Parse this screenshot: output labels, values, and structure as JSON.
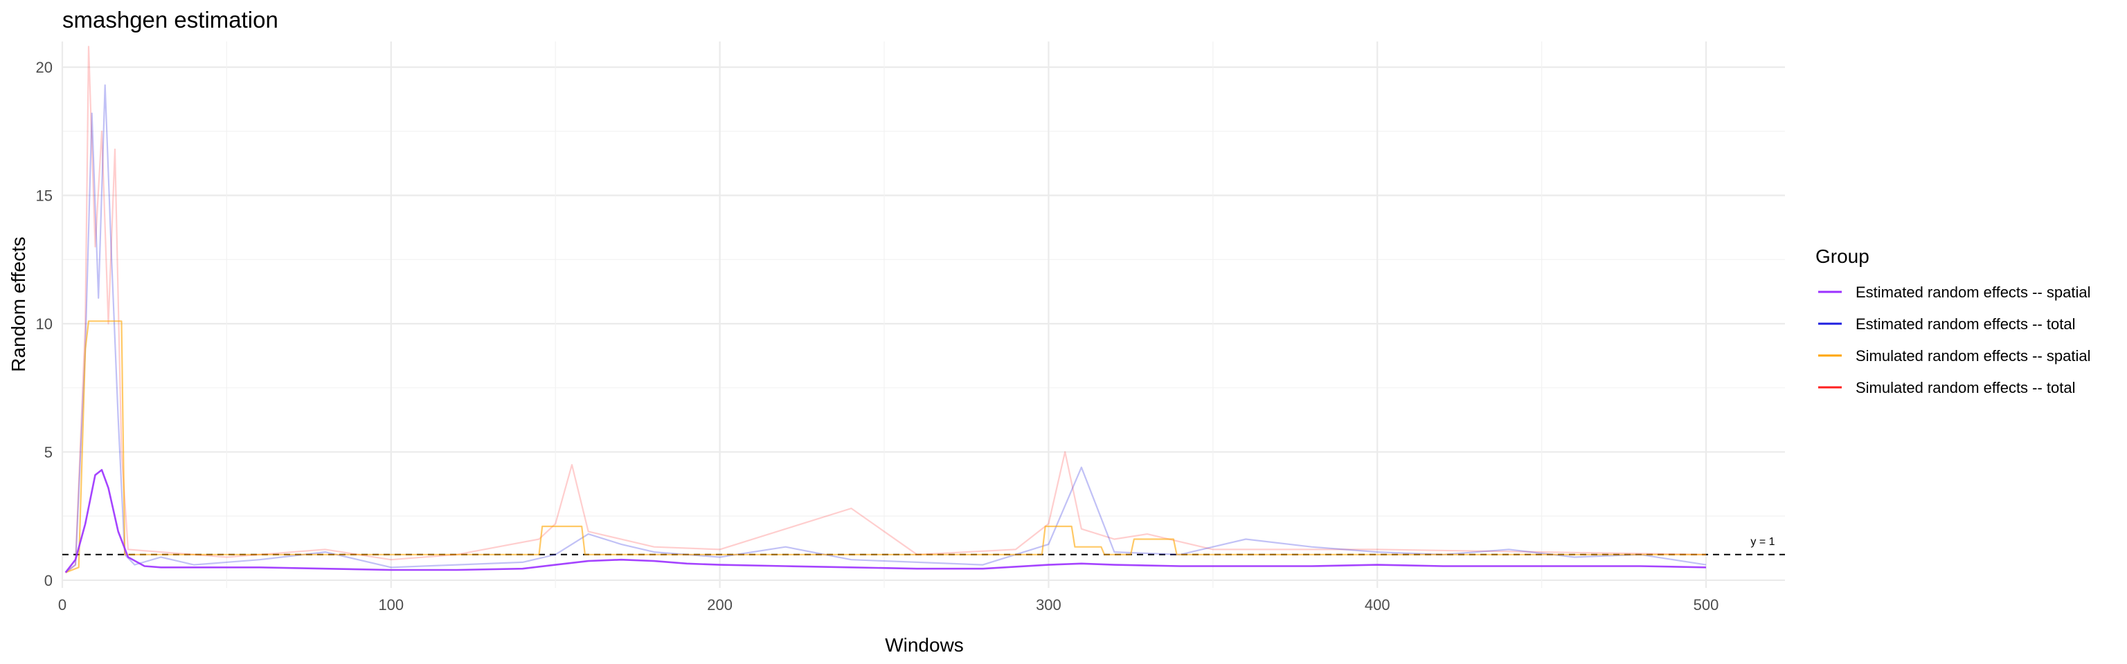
{
  "chart_data": {
    "type": "line",
    "title": "smashgen estimation",
    "xlabel": "Windows",
    "ylabel": "Random effects",
    "xlim": [
      0,
      524
    ],
    "ylim": [
      -0.3,
      21.0
    ],
    "x_ticks": [
      0,
      100,
      200,
      300,
      400,
      500
    ],
    "x_tick_labels": [
      "0",
      "100",
      "200",
      "300",
      "400",
      "500"
    ],
    "y_ticks": [
      0,
      5,
      10,
      15,
      20
    ],
    "y_tick_labels": [
      "0",
      "5",
      "10",
      "15",
      "20"
    ],
    "grid": true,
    "legend_title": "Group",
    "legend_position": "right",
    "reference_line": {
      "y": 1,
      "style": "dashed",
      "label": "y = 1"
    },
    "series": [
      {
        "name": "Estimated random effects -- spatial",
        "color": "#9B30FF",
        "x": [
          1,
          4,
          7,
          10,
          12,
          14,
          17,
          20,
          25,
          30,
          40,
          60,
          80,
          100,
          120,
          140,
          150,
          160,
          170,
          180,
          190,
          200,
          220,
          240,
          260,
          280,
          300,
          310,
          320,
          340,
          360,
          380,
          400,
          420,
          440,
          460,
          480,
          500
        ],
        "values": [
          0.3,
          0.8,
          2.2,
          4.1,
          4.3,
          3.6,
          1.9,
          0.9,
          0.55,
          0.5,
          0.5,
          0.5,
          0.45,
          0.4,
          0.4,
          0.45,
          0.6,
          0.75,
          0.8,
          0.75,
          0.65,
          0.6,
          0.55,
          0.5,
          0.45,
          0.45,
          0.6,
          0.65,
          0.6,
          0.55,
          0.55,
          0.55,
          0.6,
          0.55,
          0.55,
          0.55,
          0.55,
          0.5
        ]
      },
      {
        "name": "Estimated random effects -- total",
        "color": "#2020E0",
        "x": [
          1,
          4,
          7,
          9,
          11,
          13,
          15,
          17,
          19,
          22,
          30,
          40,
          60,
          80,
          100,
          120,
          140,
          150,
          160,
          170,
          180,
          200,
          220,
          240,
          260,
          280,
          300,
          310,
          320,
          340,
          360,
          380,
          400,
          420,
          440,
          460,
          480,
          500
        ],
        "values": [
          0.3,
          0.6,
          9.0,
          18.2,
          11.0,
          19.3,
          12.5,
          6.3,
          1.0,
          0.6,
          0.9,
          0.6,
          0.8,
          1.1,
          0.5,
          0.6,
          0.7,
          1.0,
          1.8,
          1.4,
          1.1,
          0.9,
          1.3,
          0.8,
          0.7,
          0.6,
          1.4,
          4.4,
          1.1,
          1.0,
          1.6,
          1.3,
          1.1,
          1.0,
          1.2,
          0.9,
          1.0,
          0.6
        ]
      },
      {
        "name": "Simulated random effects -- spatial",
        "color": "#FFA500",
        "x": [
          1,
          5,
          7,
          8,
          18,
          19,
          30,
          50,
          100,
          145,
          146,
          158,
          159,
          200,
          250,
          298,
          299,
          307,
          308,
          316,
          317,
          325,
          326,
          338,
          339,
          400,
          450,
          500
        ],
        "values": [
          0.3,
          0.5,
          9.0,
          10.1,
          10.1,
          1.0,
          1.0,
          1.0,
          1.0,
          1.0,
          2.1,
          2.1,
          1.0,
          1.0,
          1.0,
          1.0,
          2.1,
          2.1,
          1.3,
          1.3,
          1.0,
          1.0,
          1.6,
          1.6,
          1.0,
          1.0,
          1.0,
          1.0
        ]
      },
      {
        "name": "Simulated random effects -- total",
        "color": "#FF2020",
        "x": [
          1,
          4,
          7,
          8,
          10,
          12,
          14,
          16,
          18,
          20,
          30,
          50,
          80,
          100,
          120,
          145,
          150,
          155,
          160,
          180,
          200,
          240,
          260,
          290,
          300,
          305,
          310,
          320,
          330,
          350,
          400,
          450,
          500
        ],
        "values": [
          0.3,
          0.6,
          10.0,
          20.8,
          13.0,
          17.5,
          10.0,
          16.8,
          5.0,
          1.2,
          1.1,
          0.9,
          1.2,
          0.8,
          1.0,
          1.6,
          2.2,
          4.5,
          1.9,
          1.3,
          1.2,
          2.8,
          1.0,
          1.2,
          2.2,
          5.0,
          2.0,
          1.6,
          1.8,
          1.2,
          1.2,
          1.1,
          1.0
        ]
      }
    ]
  }
}
